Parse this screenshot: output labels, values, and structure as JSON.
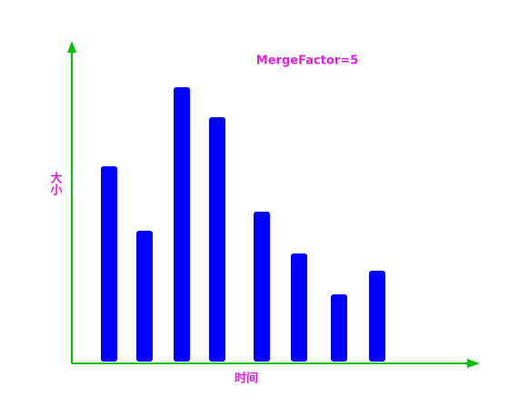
{
  "chart_data": {
    "type": "bar",
    "annotation": "MergeFactor=5",
    "y_label": "大小",
    "x_label": "时间",
    "values": [
      217,
      146,
      304,
      271,
      167,
      121,
      76,
      102
    ],
    "color": "#0000ff",
    "axis_color": "#00c000",
    "ylim": [
      0,
      355
    ]
  }
}
